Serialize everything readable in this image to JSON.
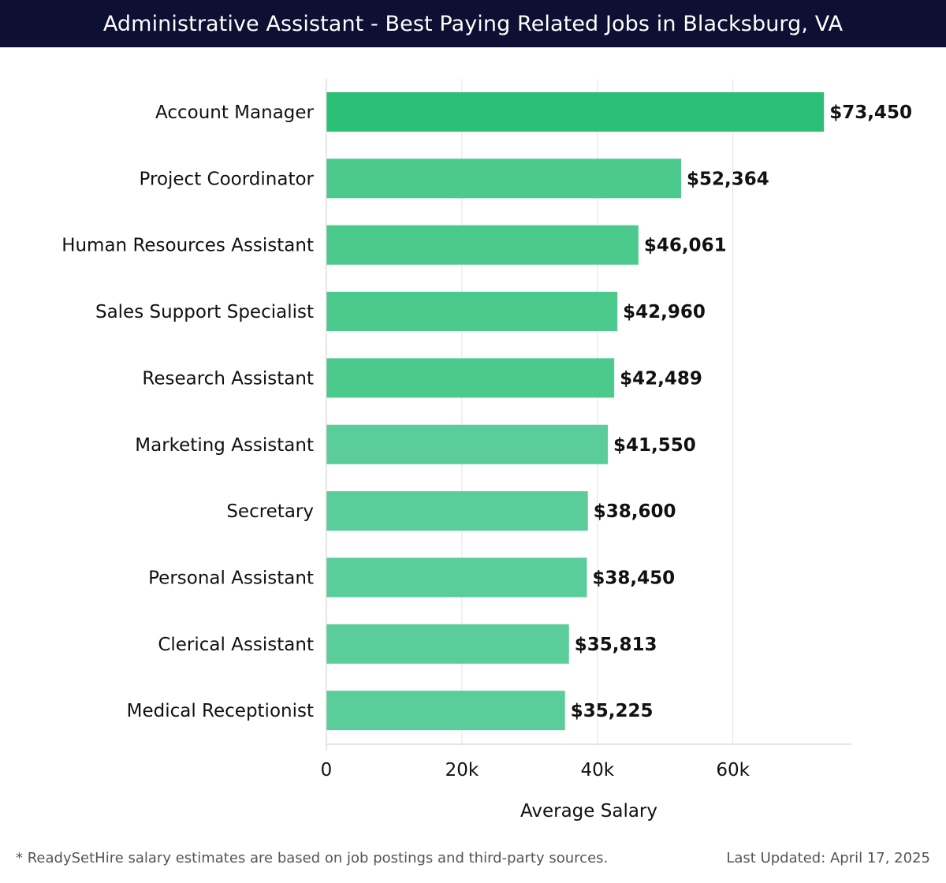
{
  "header": {
    "title": "Administrative Assistant - Best Paying Related Jobs in Blacksburg, VA"
  },
  "footer": {
    "note": "* ReadySetHire salary estimates are based on job postings and third-party sources.",
    "updated": "Last Updated: April 17, 2025"
  },
  "colors": {
    "header_bg": "#0d0f33",
    "bar_top": "#2bbf77",
    "bar": "#4cc98c",
    "bar_light": "#5acd9a",
    "grid": "#e3e3e3",
    "axis": "#cccccc",
    "text": "#111111"
  },
  "chart_data": {
    "type": "bar",
    "orientation": "horizontal",
    "title": "",
    "xlabel": "Average Salary",
    "ylabel": "",
    "xlim": [
      0,
      77500
    ],
    "xticks": [
      {
        "value": 0,
        "label": "0"
      },
      {
        "value": 20000,
        "label": "20k"
      },
      {
        "value": 40000,
        "label": "40k"
      },
      {
        "value": 60000,
        "label": "60k"
      }
    ],
    "grid": true,
    "categories": [
      "Account Manager",
      "Project Coordinator",
      "Human Resources Assistant",
      "Sales Support Specialist",
      "Research Assistant",
      "Marketing Assistant",
      "Secretary",
      "Personal Assistant",
      "Clerical Assistant",
      "Medical Receptionist"
    ],
    "values": [
      73450,
      52364,
      46061,
      42960,
      42489,
      41550,
      38600,
      38450,
      35813,
      35225
    ],
    "value_labels": [
      "$73,450",
      "$52,364",
      "$46,061",
      "$42,960",
      "$42,489",
      "$41,550",
      "$38,600",
      "$38,450",
      "$35,813",
      "$35,225"
    ]
  }
}
